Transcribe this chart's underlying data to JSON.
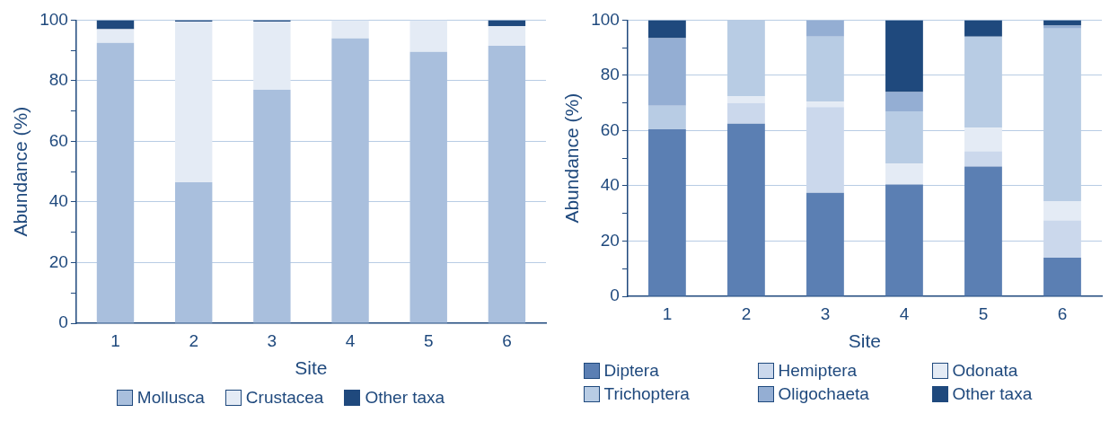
{
  "chart_data": [
    {
      "type": "bar",
      "stacked": true,
      "categories": [
        "1",
        "2",
        "3",
        "4",
        "5",
        "6"
      ],
      "xlabel": "Site",
      "ylabel": "Abundance (%)",
      "ylim": [
        0,
        100
      ],
      "yticks": [
        0,
        {
          "value": 10,
          "label": null
        },
        20,
        {
          "value": 30,
          "label": null
        },
        40,
        {
          "value": 50,
          "label": null
        },
        60,
        {
          "value": 70,
          "label": null
        },
        80,
        {
          "value": 90,
          "label": null
        },
        100
      ],
      "grid": "y",
      "legend": "bottom",
      "series": [
        {
          "name": "Mollusca",
          "color": "#a9bfdd",
          "values": [
            92.5,
            46.5,
            77,
            94,
            89.5,
            91.5
          ]
        },
        {
          "name": "Crustacea",
          "color": "#e4ebf5",
          "values": [
            4.5,
            53,
            22.5,
            6,
            10.5,
            6.5
          ]
        },
        {
          "name": "Other taxa",
          "color": "#1f497d",
          "values": [
            3,
            0.5,
            0.5,
            0,
            0,
            2
          ]
        }
      ]
    },
    {
      "type": "bar",
      "stacked": true,
      "categories": [
        "1",
        "2",
        "3",
        "4",
        "5",
        "6"
      ],
      "xlabel": "Site",
      "ylabel": "Abundance (%)",
      "ylim": [
        0,
        100
      ],
      "yticks": [
        0,
        {
          "value": 10,
          "label": null
        },
        20,
        {
          "value": 30,
          "label": null
        },
        40,
        {
          "value": 50,
          "label": null
        },
        60,
        {
          "value": 70,
          "label": null
        },
        80,
        {
          "value": 90,
          "label": null
        },
        100
      ],
      "grid": "y",
      "legend": "bottom",
      "series": [
        {
          "name": "Diptera",
          "color": "#5b7fb3",
          "values": [
            60.5,
            62.5,
            37.5,
            40.5,
            47,
            14
          ]
        },
        {
          "name": "Hemiptera",
          "color": "#cbd8ec",
          "values": [
            0,
            7.5,
            31,
            0,
            5.5,
            13.5
          ]
        },
        {
          "name": "Odonata",
          "color": "#e4ebf5",
          "values": [
            0,
            2.5,
            2,
            7.5,
            8.5,
            7
          ]
        },
        {
          "name": "Trichoptera",
          "color": "#b8cce4",
          "values": [
            8.5,
            27.5,
            23.5,
            19,
            33,
            62.5
          ]
        },
        {
          "name": "Oligochaeta",
          "color": "#94aed3",
          "values": [
            24.5,
            0,
            6,
            7,
            0,
            1
          ]
        },
        {
          "name": "Other taxa",
          "color": "#1f497d",
          "values": [
            6.5,
            0,
            0,
            26,
            6,
            2
          ]
        }
      ]
    }
  ]
}
